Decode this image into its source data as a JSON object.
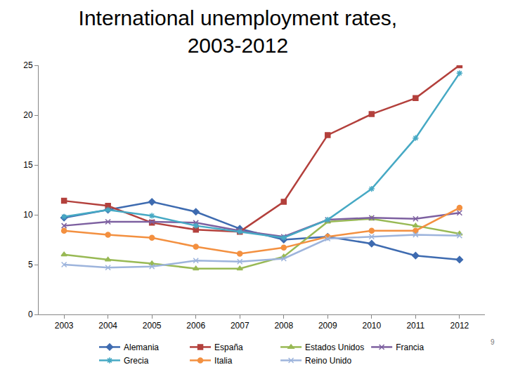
{
  "chart_data": {
    "type": "line",
    "title": "International unemployment rates, 2003-2012",
    "categories": [
      "2003",
      "2004",
      "2005",
      "2006",
      "2007",
      "2008",
      "2009",
      "2010",
      "2011",
      "2012"
    ],
    "series": [
      {
        "name": "Alemania",
        "color": "#3e6bb0",
        "marker": "diamond",
        "values": [
          9.7,
          10.5,
          11.3,
          10.3,
          8.6,
          7.5,
          7.8,
          7.1,
          5.9,
          5.5
        ]
      },
      {
        "name": "España",
        "color": "#b3403c",
        "marker": "square",
        "values": [
          11.4,
          10.9,
          9.2,
          8.5,
          8.3,
          11.3,
          18.0,
          20.1,
          21.7,
          25.0
        ]
      },
      {
        "name": "Estados Unidos",
        "color": "#98b954",
        "marker": "triangle",
        "values": [
          6.0,
          5.5,
          5.1,
          4.6,
          4.6,
          5.8,
          9.3,
          9.6,
          8.9,
          8.1
        ]
      },
      {
        "name": "Francia",
        "color": "#7d60a0",
        "marker": "x",
        "values": [
          8.9,
          9.3,
          9.3,
          9.2,
          8.4,
          7.8,
          9.5,
          9.7,
          9.6,
          10.2
        ]
      },
      {
        "name": "Grecia",
        "color": "#46a9c4",
        "marker": "asterisk",
        "values": [
          9.8,
          10.5,
          9.9,
          8.9,
          8.3,
          7.7,
          9.5,
          12.6,
          17.7,
          24.2
        ]
      },
      {
        "name": "Italia",
        "color": "#f39040",
        "marker": "circle",
        "values": [
          8.4,
          8.0,
          7.7,
          6.8,
          6.1,
          6.7,
          7.8,
          8.4,
          8.4,
          10.7
        ]
      },
      {
        "name": "Reino Unido",
        "color": "#9db4dc",
        "marker": "x",
        "values": [
          5.0,
          4.7,
          4.8,
          5.4,
          5.3,
          5.6,
          7.6,
          7.8,
          8.0,
          7.9
        ]
      }
    ],
    "ylim": [
      0,
      25
    ],
    "yticks": [
      0,
      5,
      10,
      15,
      20,
      25
    ],
    "grid": false,
    "legend": "bottom",
    "annotations": [
      {
        "text": "9"
      }
    ]
  }
}
